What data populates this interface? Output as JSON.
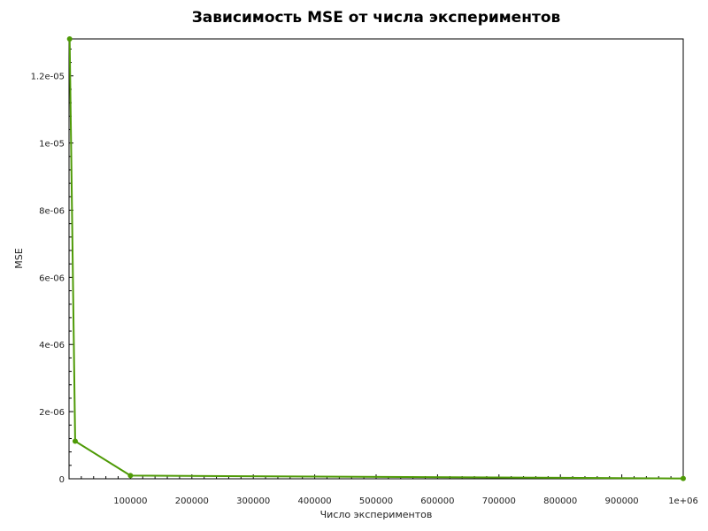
{
  "chart_data": {
    "type": "line",
    "title": "Зависимость MSE от числа экспериментов",
    "xlabel": "Число экспериментов",
    "ylabel": "MSE",
    "xlim": [
      0,
      1000000
    ],
    "ylim": [
      0,
      1.31e-05
    ],
    "x_ticks": [
      100000,
      200000,
      300000,
      400000,
      500000,
      600000,
      700000,
      800000,
      900000,
      1000000
    ],
    "x_tick_labels": [
      "100000",
      "200000",
      "300000",
      "400000",
      "500000",
      "600000",
      "700000",
      "800000",
      "900000",
      "1e+06"
    ],
    "y_ticks": [
      0,
      2e-06,
      4e-06,
      6e-06,
      8e-06,
      1e-05,
      1.2e-05
    ],
    "y_tick_labels": [
      "0",
      "2e-06",
      "4e-06",
      "6e-06",
      "8e-06",
      "1e-05",
      "1.2e-05"
    ],
    "grid": false,
    "series": [
      {
        "color": "#4e9a06",
        "points": [
          {
            "x": 1000,
            "y": 1.31e-05
          },
          {
            "x": 10000,
            "y": 1.12e-06
          },
          {
            "x": 100000,
            "y": 9.5e-08
          },
          {
            "x": 1000000,
            "y": 1e-08
          }
        ]
      }
    ]
  }
}
